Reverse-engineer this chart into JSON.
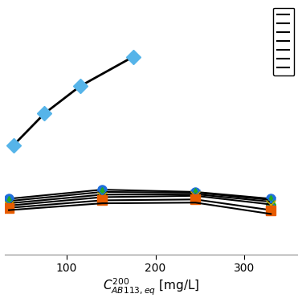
{
  "title": "",
  "xlabel": "$C_{AB113,eq}^{200}$ [mg/L]",
  "xticks": [
    100,
    200,
    300
  ],
  "xlim": [
    30,
    360
  ],
  "ylim": [
    0,
    1.1
  ],
  "upper_curve": {
    "x": [
      40,
      75,
      115,
      175
    ],
    "y": [
      0.48,
      0.62,
      0.74,
      0.87
    ],
    "marker": "D",
    "marker_color": "#56b4e9",
    "markersize": 9,
    "linecolor": "black",
    "linewidth": 2.0
  },
  "lower_curves": [
    {
      "x": [
        35,
        140,
        245,
        330
      ],
      "y": [
        0.245,
        0.285,
        0.275,
        0.245
      ],
      "marker": "o",
      "marker_color": "#1e6fdc",
      "markersize": 8,
      "linecolor": "black",
      "linewidth": 1.5
    },
    {
      "x": [
        35,
        140,
        245,
        330
      ],
      "y": [
        0.235,
        0.275,
        0.272,
        0.24
      ],
      "marker": "^",
      "marker_color": "#22aa22",
      "markersize": 8,
      "linecolor": "black",
      "linewidth": 1.5
    },
    {
      "x": [
        35,
        140,
        245,
        330
      ],
      "y": [
        0.225,
        0.263,
        0.265,
        0.232
      ],
      "marker": "x",
      "marker_color": "#1e6fdc",
      "markersize": 8,
      "linecolor": "black",
      "linewidth": 1.5
    },
    {
      "x": [
        35,
        140,
        245,
        330
      ],
      "y": [
        0.215,
        0.252,
        0.258,
        0.22
      ],
      "marker": "x",
      "marker_color": "#ccaa00",
      "markersize": 8,
      "linecolor": "black",
      "linewidth": 1.5
    },
    {
      "x": [
        35,
        140,
        245,
        330
      ],
      "y": [
        0.205,
        0.238,
        0.242,
        0.195
      ],
      "marker": "s",
      "marker_color": "#e85c00",
      "markersize": 8,
      "linecolor": "black",
      "linewidth": 1.5
    },
    {
      "x": [
        35,
        140,
        245,
        330
      ],
      "y": [
        0.195,
        0.225,
        0.228,
        0.178
      ],
      "marker": null,
      "marker_color": "black",
      "markersize": 0,
      "linecolor": "black",
      "linewidth": 1.5
    }
  ],
  "legend_n": 7,
  "figsize": [
    3.76,
    3.76
  ],
  "dpi": 100,
  "bg_color": "white",
  "spine_color": "#888888"
}
